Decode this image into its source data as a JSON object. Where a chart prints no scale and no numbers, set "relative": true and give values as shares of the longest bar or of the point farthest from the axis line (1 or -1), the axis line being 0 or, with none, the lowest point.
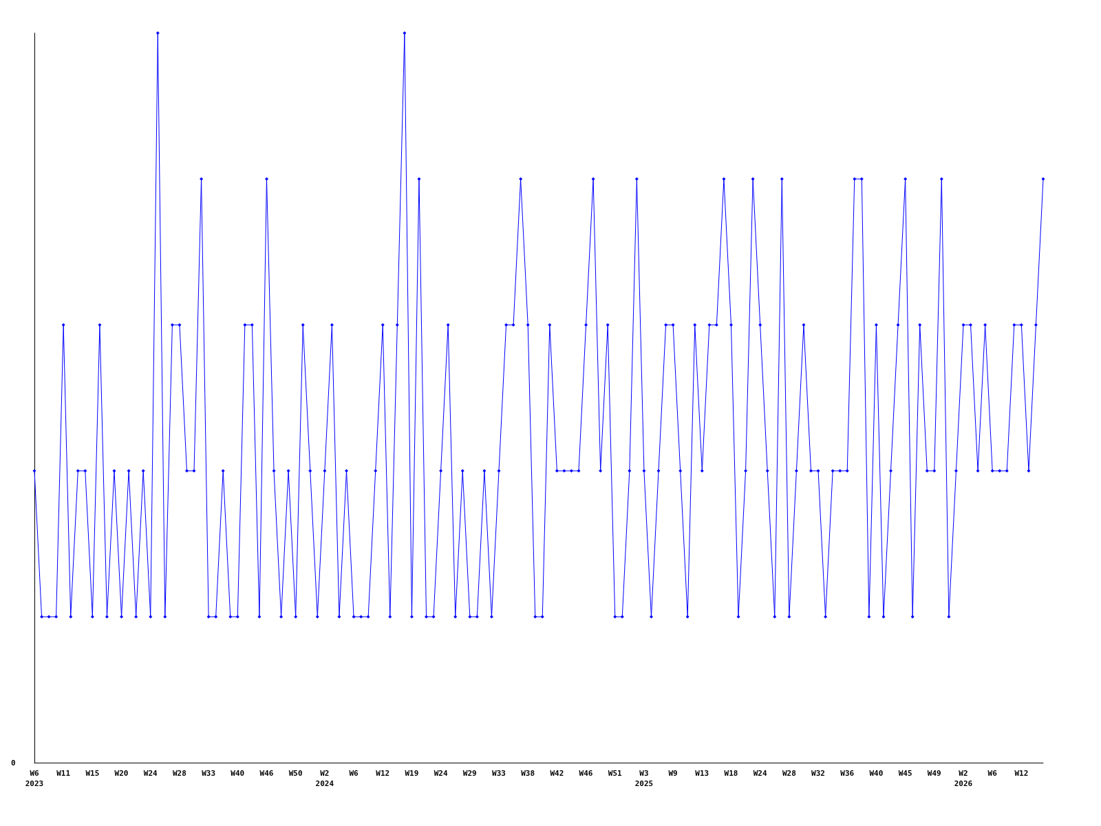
{
  "chart_data": {
    "type": "line",
    "relative": true,
    "marker": "diamond",
    "line_style": "solid",
    "annotations": [
      "0"
    ],
    "categories": [
      "W6\n2023",
      null,
      null,
      null,
      "W11",
      null,
      null,
      null,
      "W15",
      null,
      null,
      null,
      "W20",
      null,
      null,
      null,
      "W24",
      null,
      null,
      null,
      "W28",
      null,
      null,
      null,
      "W33",
      null,
      null,
      null,
      "W40",
      null,
      null,
      null,
      "W46",
      null,
      null,
      null,
      "W50",
      null,
      null,
      null,
      "W2\n2024",
      null,
      null,
      null,
      "W6",
      null,
      null,
      null,
      "W12",
      null,
      null,
      null,
      "W19",
      null,
      null,
      null,
      "W24",
      null,
      null,
      null,
      "W29",
      null,
      null,
      null,
      "W33",
      null,
      null,
      null,
      "W38",
      null,
      null,
      null,
      "W42",
      null,
      null,
      null,
      "W46",
      null,
      null,
      null,
      "W51",
      null,
      null,
      null,
      "W3\n2025",
      null,
      null,
      null,
      "W9",
      null,
      null,
      null,
      "W13",
      null,
      null,
      null,
      "W18",
      null,
      null,
      null,
      "W24",
      null,
      null,
      null,
      "W28",
      null,
      null,
      null,
      "W32",
      null,
      null,
      null,
      "W36",
      null,
      null,
      null,
      "W40",
      null,
      null,
      null,
      "W45",
      null,
      null,
      null,
      "W49",
      null,
      null,
      null,
      "W2\n2026",
      null,
      null,
      null,
      "W6",
      null,
      null,
      null,
      "W12",
      null,
      null,
      null
    ],
    "series": [
      {
        "color": "#0000ff",
        "values": [
          0.4,
          0.2,
          0.2,
          0.2,
          0.6,
          0.2,
          0.4,
          0.4,
          0.2,
          0.6,
          0.2,
          0.4,
          0.2,
          0.4,
          0.2,
          0.4,
          0.2,
          1,
          0.2,
          0.6,
          0.6,
          0.4,
          0.4,
          0.8,
          0.2,
          0.2,
          0.4,
          0.2,
          0.2,
          0.6,
          0.6,
          0.2,
          0.8,
          0.4,
          0.2,
          0.4,
          0.2,
          0.6,
          0.4,
          0.2,
          0.4,
          0.6,
          0.2,
          0.4,
          0.2,
          0.2,
          0.2,
          0.4,
          0.6,
          0.2,
          0.6,
          1,
          0.2,
          0.8,
          0.2,
          0.2,
          0.4,
          0.6,
          0.2,
          0.4,
          0.2,
          0.2,
          0.4,
          0.2,
          0.4,
          0.6,
          0.6,
          0.8,
          0.6,
          0.2,
          0.2,
          0.6,
          0.4,
          0.4,
          0.4,
          0.4,
          0.6,
          0.8,
          0.4,
          0.6,
          0.2,
          0.2,
          0.4,
          0.8,
          0.4,
          0.2,
          0.4,
          0.6,
          0.6,
          0.4,
          0.2,
          0.6,
          0.4,
          0.6,
          0.6,
          0.8,
          0.6,
          0.2,
          0.4,
          0.8,
          0.6,
          0.4,
          0.2,
          0.8,
          0.2,
          0.4,
          0.6,
          0.4,
          0.4,
          0.2,
          0.4,
          0.4,
          0.4,
          0.8,
          0.8,
          0.2,
          0.6,
          0.2,
          0.4,
          0.6,
          0.8,
          0.2,
          0.6,
          0.4,
          0.4,
          0.8,
          0.2,
          0.4,
          0.6,
          0.6,
          0.4,
          0.6,
          0.4,
          0.4,
          0.4,
          0.6,
          0.6,
          0.4,
          0.6,
          0.8
        ]
      }
    ]
  }
}
